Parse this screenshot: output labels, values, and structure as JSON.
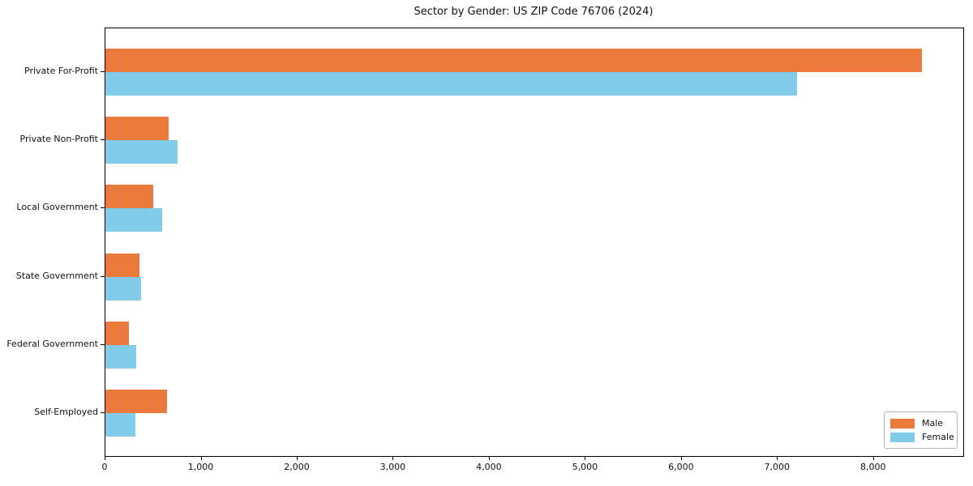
{
  "title": "Sector by Gender: US ZIP Code 76706 (2024)",
  "colors": {
    "male": "#E97A3C",
    "female": "#82CCE9",
    "axis": "#000000",
    "legend_border": "#b3b3b3",
    "background": "#ffffff"
  },
  "legend": {
    "position": "lower right",
    "entries": [
      {
        "label": "Male",
        "color": "#E97A3C"
      },
      {
        "label": "Female",
        "color": "#82CCE9"
      }
    ]
  },
  "chart_data": {
    "type": "bar",
    "orientation": "horizontal",
    "title": "Sector by Gender: US ZIP Code 76706 (2024)",
    "xlabel": "",
    "ylabel": "",
    "grid": false,
    "categories": [
      "Private For-Profit",
      "Private Non-Profit",
      "Local Government",
      "State Government",
      "Federal Government",
      "Self-Employed"
    ],
    "series": [
      {
        "name": "Male",
        "color": "#E97A3C",
        "values": [
          8500,
          655,
          495,
          350,
          245,
          640
        ]
      },
      {
        "name": "Female",
        "color": "#82CCE9",
        "values": [
          7200,
          750,
          590,
          375,
          320,
          310
        ]
      }
    ],
    "xlim": [
      0,
      8930
    ],
    "xticks": [
      0,
      1000,
      2000,
      3000,
      4000,
      5000,
      6000,
      7000,
      8000
    ],
    "xtick_labels": [
      "0",
      "1,000",
      "2,000",
      "3,000",
      "4,000",
      "5,000",
      "6,000",
      "7,000",
      "8,000"
    ],
    "legend_position": "lower right"
  }
}
